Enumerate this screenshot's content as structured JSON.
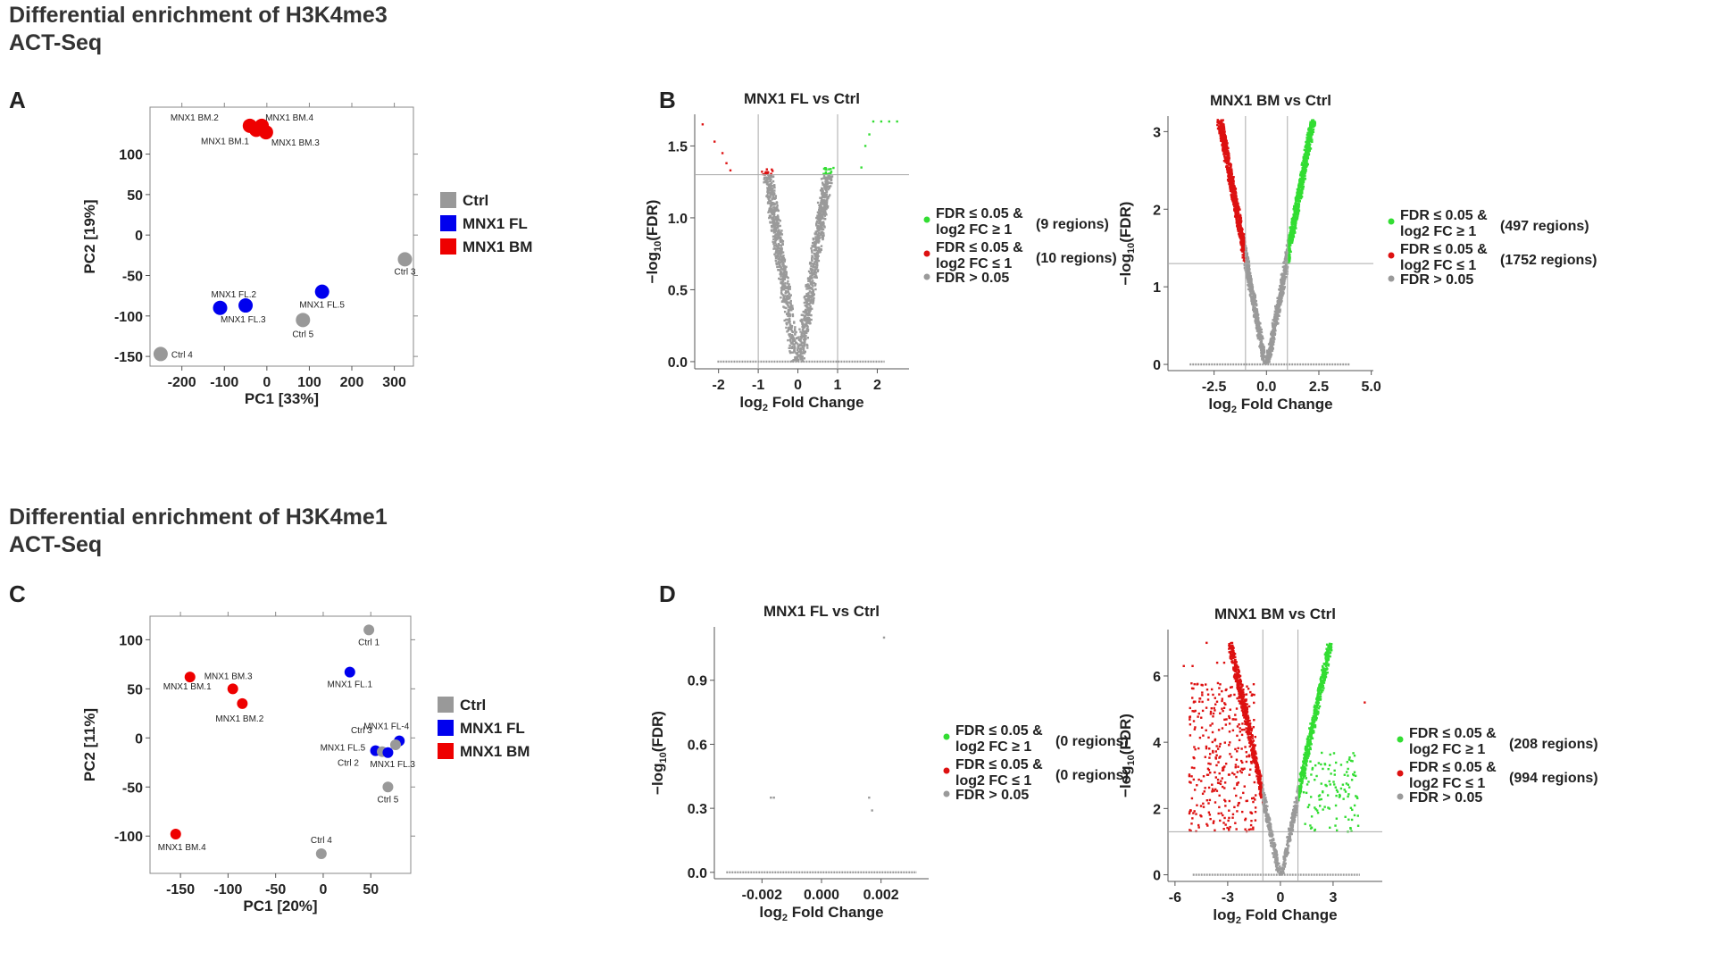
{
  "titles": {
    "top_line1": "Differential enrichment of H3K4me3",
    "top_line2": "ACT-Seq",
    "bottom_line1": "Differential enrichment  of H3K4me1",
    "bottom_line2": "ACT-Seq"
  },
  "panels": {
    "A": "A",
    "B": "B",
    "C": "C",
    "D": "D"
  },
  "colors": {
    "ctrl": "#999999",
    "fl": "#0000ee",
    "bm": "#ee0000",
    "up": "#33dd33",
    "down": "#dd1111",
    "ns": "#9a9a9a"
  },
  "pca_legend": [
    "Ctrl",
    "MNX1 FL",
    "MNX1 BM"
  ],
  "chart_data": [
    {
      "id": "A",
      "type": "scatter",
      "title": "",
      "xlabel": "PC1 [33%]",
      "ylabel": "PC2 [19%]",
      "xlim": [
        -275,
        345
      ],
      "ylim": [
        -162,
        158
      ],
      "xticks": [
        -200,
        -100,
        0,
        100,
        200,
        300
      ],
      "yticks": [
        -150,
        -100,
        -50,
        0,
        50,
        100
      ],
      "points": [
        {
          "label": "MNX1 BM.2",
          "x": -40,
          "y": 135,
          "group": "bm",
          "lx": -35,
          "ly": -6,
          "anchor": "end"
        },
        {
          "label": "MNX1 BM.1",
          "x": -25,
          "y": 130,
          "group": "bm",
          "lx": -8,
          "ly": 16,
          "anchor": "end"
        },
        {
          "label": "MNX1 BM.4",
          "x": -12,
          "y": 135,
          "group": "bm",
          "lx": 4,
          "ly": -6,
          "anchor": "start"
        },
        {
          "label": "MNX1 BM.3",
          "x": -2,
          "y": 127,
          "group": "bm",
          "lx": 6,
          "ly": 15,
          "anchor": "start"
        },
        {
          "label": "Ctrl 3",
          "x": 325,
          "y": -30,
          "group": "ctrl",
          "lx": 0,
          "ly": 17,
          "anchor": "middle"
        },
        {
          "label": "MNX1 FL.2",
          "x": -110,
          "y": -90,
          "group": "fl",
          "lx": -10,
          "ly": -12,
          "anchor": "start"
        },
        {
          "label": "MNX1 FL.3",
          "x": -50,
          "y": -87,
          "group": "fl",
          "lx": -28,
          "ly": 19,
          "anchor": "start"
        },
        {
          "label": "MNX1 FL.5",
          "x": 130,
          "y": -70,
          "group": "fl",
          "lx": 0,
          "ly": 18,
          "anchor": "middle"
        },
        {
          "label": "Ctrl 5",
          "x": 85,
          "y": -105,
          "group": "ctrl",
          "lx": 0,
          "ly": 19,
          "anchor": "middle"
        },
        {
          "label": "Ctrl 4",
          "x": -250,
          "y": -147,
          "group": "ctrl",
          "lx": 12,
          "ly": 4,
          "anchor": "start"
        }
      ],
      "legend": [
        "Ctrl",
        "MNX1 FL",
        "MNX1 BM"
      ]
    },
    {
      "id": "B1",
      "type": "scatter",
      "title": "MNX1 FL vs Ctrl",
      "xlabel": "log2 Fold Change",
      "ylabel": "-log10(FDR)",
      "xlim": [
        -2.6,
        2.8
      ],
      "ylim": [
        -0.05,
        1.72
      ],
      "xticks": [
        -2,
        -1,
        0,
        1,
        2
      ],
      "yticks": [
        0.0,
        0.5,
        1.0,
        1.5
      ],
      "threshold_y": 1.3,
      "vlines": [
        -1,
        1
      ],
      "shape": "v",
      "vscale": 0.54,
      "ymax": 1.35,
      "legend": [
        {
          "color": "up",
          "line1": "FDR ≤ 0.05 &",
          "line2": "log2 FC ≥ 1",
          "count": "(9 regions)"
        },
        {
          "color": "down",
          "line1": "FDR ≤ 0.05 &",
          "line2": "log2 FC ≤ 1",
          "count": "(10 regions)"
        },
        {
          "color": "ns",
          "line1": "FDR > 0.05",
          "line2": "",
          "count": ""
        }
      ]
    },
    {
      "id": "B2",
      "type": "scatter",
      "title": "MNX1 BM vs Ctrl",
      "xlabel": "log2 Fold Change",
      "ylabel": "-log10(FDR)",
      "xlim": [
        -4.7,
        5.1
      ],
      "ylim": [
        -0.08,
        3.2
      ],
      "xticks": [
        -2.5,
        0.0,
        2.5,
        5.0
      ],
      "yticks": [
        0,
        1,
        2,
        3
      ],
      "threshold_y": 1.3,
      "vlines": [
        -1,
        1
      ],
      "shape": "v",
      "vscale": 0.69,
      "ymax": 3.15,
      "legend": [
        {
          "color": "up",
          "line1": "FDR ≤ 0.05 &",
          "line2": "log2 FC ≥ 1",
          "count": "(497 regions)"
        },
        {
          "color": "down",
          "line1": "FDR ≤ 0.05 &",
          "line2": "log2 FC ≤ 1",
          "count": "(1752 regions)"
        },
        {
          "color": "ns",
          "line1": "FDR > 0.05",
          "line2": "",
          "count": ""
        }
      ]
    },
    {
      "id": "C",
      "type": "scatter",
      "title": "",
      "xlabel": "PC1 [20%]",
      "ylabel": "PC2 [11%]",
      "xlim": [
        -182,
        92
      ],
      "ylim": [
        -138,
        124
      ],
      "xticks": [
        -150,
        -100,
        -50,
        0,
        50
      ],
      "yticks": [
        -100,
        -50,
        0,
        50,
        100
      ],
      "points": [
        {
          "label": "Ctrl 1",
          "x": 48,
          "y": 110,
          "group": "ctrl",
          "lx": 0,
          "ly": 17,
          "anchor": "middle"
        },
        {
          "label": "MNX1 FL.1",
          "x": 28,
          "y": 67,
          "group": "fl",
          "lx": 0,
          "ly": 17,
          "anchor": "middle"
        },
        {
          "label": "MNX1 BM.3",
          "x": -95,
          "y": 50,
          "group": "bm",
          "lx": -32,
          "ly": -11,
          "anchor": "start"
        },
        {
          "label": "MNX1 BM.1",
          "x": -140,
          "y": 62,
          "group": "bm",
          "lx": -30,
          "ly": 14,
          "anchor": "start"
        },
        {
          "label": "MNX1 BM.2",
          "x": -85,
          "y": 35,
          "group": "bm",
          "lx": -30,
          "ly": 20,
          "anchor": "start"
        },
        {
          "label": "MNX1 FL-4",
          "x": 80,
          "y": -3,
          "group": "fl",
          "lx": -40,
          "ly": -13,
          "anchor": "start"
        },
        {
          "label": "Ctrl 3",
          "x": 76,
          "y": -7,
          "group": "ctrl",
          "lx": -50,
          "ly": -13,
          "anchor": "start"
        },
        {
          "label": "MNX1 FL.5",
          "x": 55,
          "y": -13,
          "group": "fl",
          "lx": -62,
          "ly": 0,
          "anchor": "start"
        },
        {
          "label": "Ctrl 2",
          "x": 62,
          "y": -14,
          "group": "ctrl",
          "lx": -50,
          "ly": 16,
          "anchor": "start"
        },
        {
          "label": "MNX1 FL.3",
          "x": 68,
          "y": -15,
          "group": "fl",
          "lx": -20,
          "ly": 16,
          "anchor": "start"
        },
        {
          "label": "Ctrl 5",
          "x": 68,
          "y": -50,
          "group": "ctrl",
          "lx": 0,
          "ly": 17,
          "anchor": "middle"
        },
        {
          "label": "MNX1 BM.4",
          "x": -155,
          "y": -98,
          "group": "bm",
          "lx": -20,
          "ly": 18,
          "anchor": "start"
        },
        {
          "label": "Ctrl 4",
          "x": -2,
          "y": -118,
          "group": "ctrl",
          "lx": 0,
          "ly": -12,
          "anchor": "middle"
        }
      ],
      "legend": [
        "Ctrl",
        "MNX1 FL",
        "MNX1 BM"
      ]
    },
    {
      "id": "D1",
      "type": "scatter",
      "title": "MNX1 FL vs Ctrl",
      "xlabel": "log2 Fold Change",
      "ylabel": "-log10(FDR)",
      "xlim": [
        -0.0036,
        0.0036
      ],
      "ylim": [
        -0.03,
        1.15
      ],
      "xticks": [
        -0.002,
        0.0,
        0.002
      ],
      "yticks": [
        0.0,
        0.3,
        0.6,
        0.9
      ],
      "shape": "flat",
      "extra_points": [
        [
          -0.0017,
          0.35
        ],
        [
          -0.0016,
          0.35
        ],
        [
          0.0016,
          0.35
        ],
        [
          0.0017,
          0.29
        ],
        [
          0.0021,
          1.1
        ]
      ],
      "legend": [
        {
          "color": "up",
          "line1": "FDR ≤ 0.05 &",
          "line2": "log2 FC ≥ 1",
          "count": "(0 regions)"
        },
        {
          "color": "down",
          "line1": "FDR ≤ 0.05 &",
          "line2": "log2 FC ≤ 1",
          "count": "(0 regions)"
        },
        {
          "color": "ns",
          "line1": "FDR > 0.05",
          "line2": "",
          "count": ""
        }
      ]
    },
    {
      "id": "D2",
      "type": "scatter",
      "title": "MNX1 BM vs Ctrl",
      "xlabel": "log2 Fold Change",
      "ylabel": "-log10(FDR)",
      "xlim": [
        -6.4,
        5.8
      ],
      "ylim": [
        -0.2,
        7.4
      ],
      "xticks": [
        -6,
        -3,
        0,
        3
      ],
      "yticks": [
        0,
        2,
        4,
        6
      ],
      "threshold_y": 1.3,
      "vlines": [
        -1,
        1
      ],
      "shape": "v",
      "vscale": 0.4,
      "ymax": 7.0,
      "legend": [
        {
          "color": "up",
          "line1": "FDR ≤ 0.05 &",
          "line2": "log2 FC ≥ 1",
          "count": "(208 regions)"
        },
        {
          "color": "down",
          "line1": "FDR ≤ 0.05 &",
          "line2": "log2 FC ≤ 1",
          "count": "(994 regions)"
        },
        {
          "color": "ns",
          "line1": "FDR > 0.05",
          "line2": "",
          "count": ""
        }
      ]
    }
  ]
}
